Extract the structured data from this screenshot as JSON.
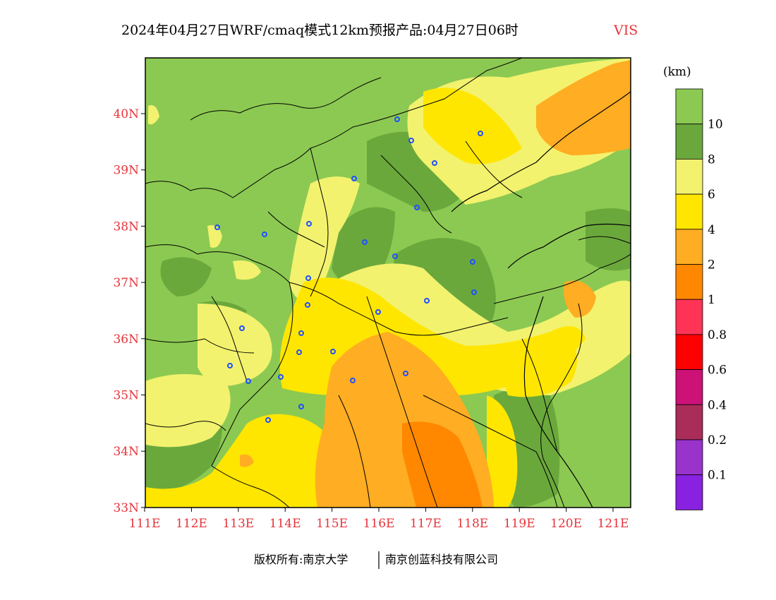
{
  "title": {
    "main": "2024年04月27日WRF/cmaq模式12km预报产品:04月27日06时",
    "variable": "VIS"
  },
  "axes": {
    "x_ticks": [
      "111E",
      "112E",
      "113E",
      "114E",
      "115E",
      "116E",
      "117E",
      "118E",
      "119E",
      "120E",
      "121E"
    ],
    "y_ticks": [
      "40N",
      "39N",
      "38N",
      "37N",
      "36N",
      "35N",
      "34N",
      "33N"
    ]
  },
  "colorbar": {
    "unit": "(km)",
    "bins": [
      {
        "label": "",
        "color": "#8cc952"
      },
      {
        "label": "10",
        "color": "#6aa83c"
      },
      {
        "label": "8",
        "color": "#f2f26e"
      },
      {
        "label": "6",
        "color": "#ffe600"
      },
      {
        "label": "4",
        "color": "#ffad22"
      },
      {
        "label": "2",
        "color": "#ff8800"
      },
      {
        "label": "1",
        "color": "#ff3355"
      },
      {
        "label": "0.8",
        "color": "#ff0000"
      },
      {
        "label": "0.6",
        "color": "#cc1177"
      },
      {
        "label": "0.4",
        "color": "#aa2c58"
      },
      {
        "label": "0.2",
        "color": "#9933cc"
      },
      {
        "label": "0.1",
        "color": "#8822e0"
      }
    ]
  },
  "footer": {
    "copyright": "版权所有:南京大学",
    "company": "南京创蓝科技有限公司"
  },
  "colors": {
    "axis_label": "#e8333a",
    "city_marker": "#1f4fff",
    "boundary": "#000000"
  }
}
